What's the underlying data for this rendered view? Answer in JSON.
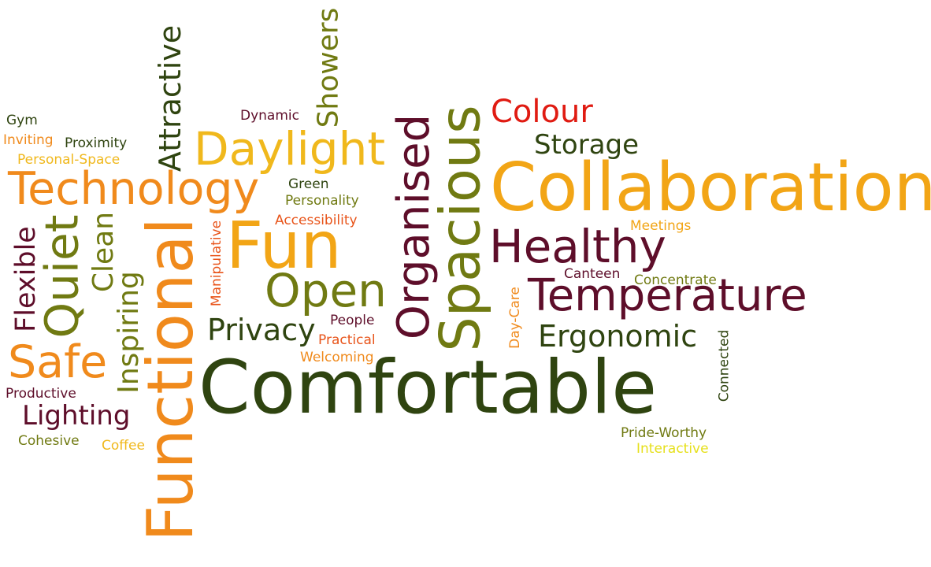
{
  "colors": {
    "orange": "#f08a1c",
    "amber": "#f2a516",
    "gold": "#f0b81c",
    "olive": "#707a12",
    "darkgreen": "#2f4410",
    "maroon": "#5e0e2a",
    "red": "#e01b12",
    "redorange": "#e8541a",
    "yellow": "#e6e01c"
  },
  "words": [
    {
      "id": "comfortable",
      "text": "Comfortable",
      "color": "darkgreen",
      "orientation": "horizontal"
    },
    {
      "id": "collaboration",
      "text": "Collaboration",
      "color": "amber",
      "orientation": "horizontal"
    },
    {
      "id": "functional",
      "text": "Functional",
      "color": "orange",
      "orientation": "vertical"
    },
    {
      "id": "spacious",
      "text": "Spacious",
      "color": "olive",
      "orientation": "vertical"
    },
    {
      "id": "technology",
      "text": "Technology",
      "color": "orange",
      "orientation": "horizontal"
    },
    {
      "id": "organised",
      "text": "Organised",
      "color": "maroon",
      "orientation": "vertical"
    },
    {
      "id": "temperature",
      "text": "Temperature",
      "color": "maroon",
      "orientation": "horizontal"
    },
    {
      "id": "fun",
      "text": "Fun",
      "color": "amber",
      "orientation": "horizontal"
    },
    {
      "id": "daylight",
      "text": "Daylight",
      "color": "gold",
      "orientation": "horizontal"
    },
    {
      "id": "healthy",
      "text": "Healthy",
      "color": "maroon",
      "orientation": "horizontal"
    },
    {
      "id": "open",
      "text": "Open",
      "color": "olive",
      "orientation": "horizontal"
    },
    {
      "id": "quiet",
      "text": "Quiet",
      "color": "olive",
      "orientation": "vertical"
    },
    {
      "id": "attractive",
      "text": "Attractive",
      "color": "darkgreen",
      "orientation": "vertical"
    },
    {
      "id": "safe",
      "text": "Safe",
      "color": "orange",
      "orientation": "horizontal"
    },
    {
      "id": "inspiring",
      "text": "Inspiring",
      "color": "olive",
      "orientation": "vertical"
    },
    {
      "id": "colour",
      "text": "Colour",
      "color": "red",
      "orientation": "horizontal"
    },
    {
      "id": "ergonomic",
      "text": "Ergonomic",
      "color": "darkgreen",
      "orientation": "horizontal"
    },
    {
      "id": "privacy",
      "text": "Privacy",
      "color": "darkgreen",
      "orientation": "horizontal"
    },
    {
      "id": "storage",
      "text": "Storage",
      "color": "darkgreen",
      "orientation": "horizontal"
    },
    {
      "id": "showers",
      "text": "Showers",
      "color": "olive",
      "orientation": "vertical"
    },
    {
      "id": "flexible",
      "text": "Flexible",
      "color": "maroon",
      "orientation": "vertical"
    },
    {
      "id": "clean",
      "text": "Clean",
      "color": "olive",
      "orientation": "vertical"
    },
    {
      "id": "lighting",
      "text": "Lighting",
      "color": "maroon",
      "orientation": "horizontal"
    },
    {
      "id": "dynamic",
      "text": "Dynamic",
      "color": "maroon",
      "orientation": "horizontal"
    },
    {
      "id": "gym",
      "text": "Gym",
      "color": "darkgreen",
      "orientation": "horizontal"
    },
    {
      "id": "inviting",
      "text": "Inviting",
      "color": "orange",
      "orientation": "horizontal"
    },
    {
      "id": "proximity",
      "text": "Proximity",
      "color": "darkgreen",
      "orientation": "horizontal"
    },
    {
      "id": "personal-space",
      "text": "Personal-Space",
      "color": "gold",
      "orientation": "horizontal"
    },
    {
      "id": "green",
      "text": "Green",
      "color": "darkgreen",
      "orientation": "horizontal"
    },
    {
      "id": "personality",
      "text": "Personality",
      "color": "olive",
      "orientation": "horizontal"
    },
    {
      "id": "accessibility",
      "text": "Accessibility",
      "color": "redorange",
      "orientation": "horizontal"
    },
    {
      "id": "manipulative",
      "text": "Manipulative",
      "color": "redorange",
      "orientation": "vertical"
    },
    {
      "id": "meetings",
      "text": "Meetings",
      "color": "amber",
      "orientation": "horizontal"
    },
    {
      "id": "canteen",
      "text": "Canteen",
      "color": "maroon",
      "orientation": "horizontal"
    },
    {
      "id": "concentrate",
      "text": "Concentrate",
      "color": "olive",
      "orientation": "horizontal"
    },
    {
      "id": "people",
      "text": "People",
      "color": "maroon",
      "orientation": "horizontal"
    },
    {
      "id": "practical",
      "text": "Practical",
      "color": "redorange",
      "orientation": "horizontal"
    },
    {
      "id": "welcoming",
      "text": "Welcoming",
      "color": "orange",
      "orientation": "horizontal"
    },
    {
      "id": "day-care",
      "text": "Day-Care",
      "color": "orange",
      "orientation": "vertical"
    },
    {
      "id": "connected",
      "text": "Connected",
      "color": "darkgreen",
      "orientation": "vertical"
    },
    {
      "id": "productive",
      "text": "Productive",
      "color": "maroon",
      "orientation": "horizontal"
    },
    {
      "id": "cohesive",
      "text": "Cohesive",
      "color": "olive",
      "orientation": "horizontal"
    },
    {
      "id": "coffee",
      "text": "Coffee",
      "color": "gold",
      "orientation": "horizontal"
    },
    {
      "id": "pride-worthy",
      "text": "Pride-Worthy",
      "color": "olive",
      "orientation": "horizontal"
    },
    {
      "id": "interactive",
      "text": "Interactive",
      "color": "yellow",
      "orientation": "horizontal"
    }
  ]
}
